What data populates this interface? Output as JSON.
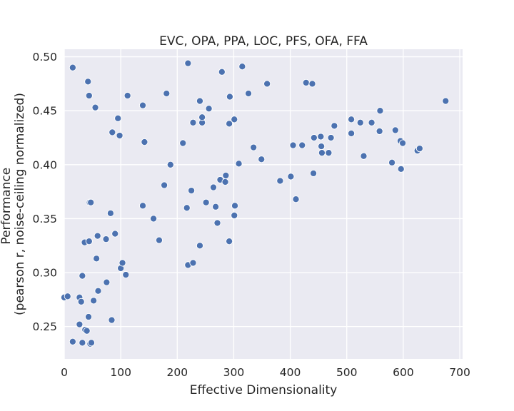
{
  "chart_data": {
    "type": "scatter",
    "title": "EVC, OPA, PPA, LOC, PFS, OFA, FFA",
    "xlabel": "Effective Dimensionality",
    "ylabel_line1": "Performance",
    "ylabel_line2": "(pearson r, noise-ceiling normalized)",
    "xlim": [
      0,
      705
    ],
    "ylim": [
      0.22,
      0.507
    ],
    "xticks": [
      0,
      100,
      200,
      300,
      400,
      500,
      600,
      700
    ],
    "yticks": [
      0.25,
      0.3,
      0.35,
      0.4,
      0.45,
      0.5
    ],
    "xtick_labels": [
      "0",
      "100",
      "200",
      "300",
      "400",
      "500",
      "600",
      "700"
    ],
    "ytick_labels": [
      "0.25",
      "0.30",
      "0.35",
      "0.40",
      "0.45",
      "0.50"
    ],
    "grid": true,
    "point_color": "#4c72b0",
    "background_color": "#eaeaf2",
    "points": [
      [
        0,
        0.277
      ],
      [
        6,
        0.278
      ],
      [
        15,
        0.49
      ],
      [
        15,
        0.236
      ],
      [
        27,
        0.252
      ],
      [
        27,
        0.277
      ],
      [
        30,
        0.273
      ],
      [
        32,
        0.297
      ],
      [
        32,
        0.235
      ],
      [
        36,
        0.328
      ],
      [
        37,
        0.247
      ],
      [
        40,
        0.246
      ],
      [
        42,
        0.477
      ],
      [
        43,
        0.259
      ],
      [
        44,
        0.329
      ],
      [
        44,
        0.464
      ],
      [
        45,
        0.365
      ],
      [
        46,
        0.234
      ],
      [
        47,
        0.365
      ],
      [
        48,
        0.235
      ],
      [
        52,
        0.274
      ],
      [
        55,
        0.453
      ],
      [
        57,
        0.313
      ],
      [
        59,
        0.334
      ],
      [
        60,
        0.283
      ],
      [
        74,
        0.331
      ],
      [
        75,
        0.291
      ],
      [
        82,
        0.355
      ],
      [
        84,
        0.256
      ],
      [
        85,
        0.43
      ],
      [
        90,
        0.336
      ],
      [
        95,
        0.443
      ],
      [
        98,
        0.427
      ],
      [
        100,
        0.304
      ],
      [
        103,
        0.309
      ],
      [
        109,
        0.298
      ],
      [
        112,
        0.464
      ],
      [
        139,
        0.362
      ],
      [
        139,
        0.455
      ],
      [
        142,
        0.421
      ],
      [
        158,
        0.35
      ],
      [
        168,
        0.33
      ],
      [
        177,
        0.381
      ],
      [
        181,
        0.466
      ],
      [
        188,
        0.4
      ],
      [
        210,
        0.42
      ],
      [
        217,
        0.36
      ],
      [
        219,
        0.307
      ],
      [
        219,
        0.494
      ],
      [
        225,
        0.376
      ],
      [
        228,
        0.309
      ],
      [
        228,
        0.439
      ],
      [
        240,
        0.325
      ],
      [
        240,
        0.459
      ],
      [
        244,
        0.439
      ],
      [
        244,
        0.444
      ],
      [
        251,
        0.365
      ],
      [
        256,
        0.452
      ],
      [
        264,
        0.379
      ],
      [
        268,
        0.361
      ],
      [
        271,
        0.346
      ],
      [
        276,
        0.386
      ],
      [
        279,
        0.486
      ],
      [
        285,
        0.384
      ],
      [
        286,
        0.39
      ],
      [
        292,
        0.329
      ],
      [
        292,
        0.438
      ],
      [
        293,
        0.463
      ],
      [
        301,
        0.442
      ],
      [
        301,
        0.353
      ],
      [
        302,
        0.362
      ],
      [
        309,
        0.401
      ],
      [
        315,
        0.491
      ],
      [
        326,
        0.466
      ],
      [
        335,
        0.416
      ],
      [
        349,
        0.405
      ],
      [
        359,
        0.475
      ],
      [
        382,
        0.385
      ],
      [
        401,
        0.389
      ],
      [
        405,
        0.418
      ],
      [
        410,
        0.368
      ],
      [
        421,
        0.418
      ],
      [
        428,
        0.476
      ],
      [
        439,
        0.475
      ],
      [
        441,
        0.392
      ],
      [
        442,
        0.425
      ],
      [
        454,
        0.426
      ],
      [
        455,
        0.417
      ],
      [
        456,
        0.411
      ],
      [
        468,
        0.411
      ],
      [
        472,
        0.425
      ],
      [
        478,
        0.436
      ],
      [
        508,
        0.442
      ],
      [
        508,
        0.429
      ],
      [
        524,
        0.439
      ],
      [
        530,
        0.408
      ],
      [
        544,
        0.439
      ],
      [
        558,
        0.431
      ],
      [
        559,
        0.45
      ],
      [
        580,
        0.402
      ],
      [
        586,
        0.432
      ],
      [
        595,
        0.422
      ],
      [
        596,
        0.396
      ],
      [
        599,
        0.42
      ],
      [
        625,
        0.413
      ],
      [
        629,
        0.415
      ],
      [
        675,
        0.459
      ]
    ]
  }
}
